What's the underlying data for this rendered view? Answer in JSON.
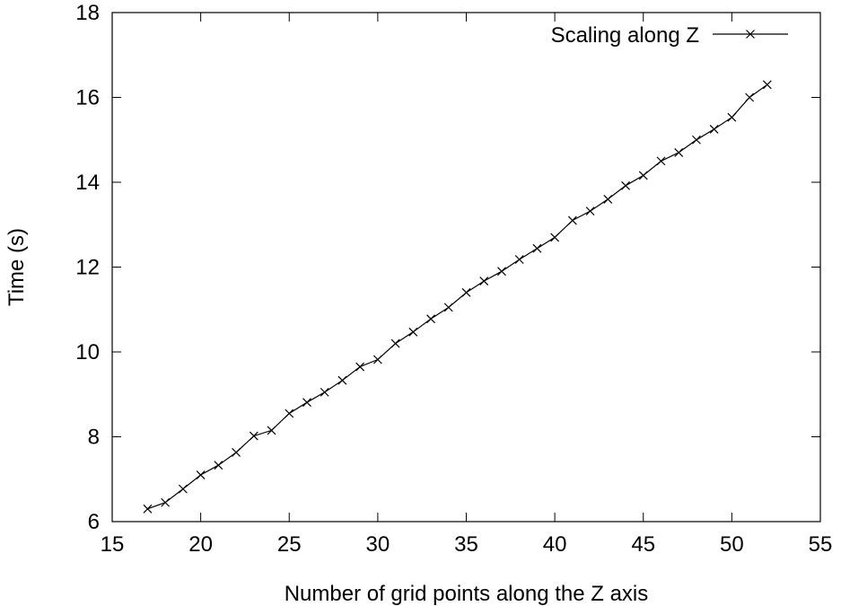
{
  "chart_data": {
    "type": "line",
    "title": "",
    "xlabel": "Number of grid points along the Z axis",
    "ylabel": "Time (s)",
    "xlim": [
      15,
      55
    ],
    "ylim": [
      6,
      18
    ],
    "xticks": [
      15,
      20,
      25,
      30,
      35,
      40,
      45,
      50,
      55
    ],
    "yticks": [
      6,
      8,
      10,
      12,
      14,
      16,
      18
    ],
    "grid": false,
    "legend_position": "top-right",
    "series": [
      {
        "name": "Scaling along Z",
        "color": "#000000",
        "marker": "x",
        "x": [
          17,
          18,
          19,
          20,
          21,
          22,
          23,
          24,
          25,
          26,
          27,
          28,
          29,
          30,
          31,
          32,
          33,
          34,
          35,
          36,
          37,
          38,
          39,
          40,
          41,
          42,
          43,
          44,
          45,
          46,
          47,
          48,
          49,
          50,
          51,
          52
        ],
        "y": [
          6.3,
          6.45,
          6.77,
          7.1,
          7.33,
          7.63,
          8.02,
          8.15,
          8.55,
          8.81,
          9.05,
          9.33,
          9.65,
          9.82,
          10.2,
          10.47,
          10.78,
          11.05,
          11.4,
          11.67,
          11.9,
          12.18,
          12.44,
          12.7,
          13.1,
          13.32,
          13.6,
          13.92,
          14.16,
          14.5,
          14.7,
          15.0,
          15.25,
          15.53,
          16.0,
          16.3
        ]
      }
    ]
  }
}
